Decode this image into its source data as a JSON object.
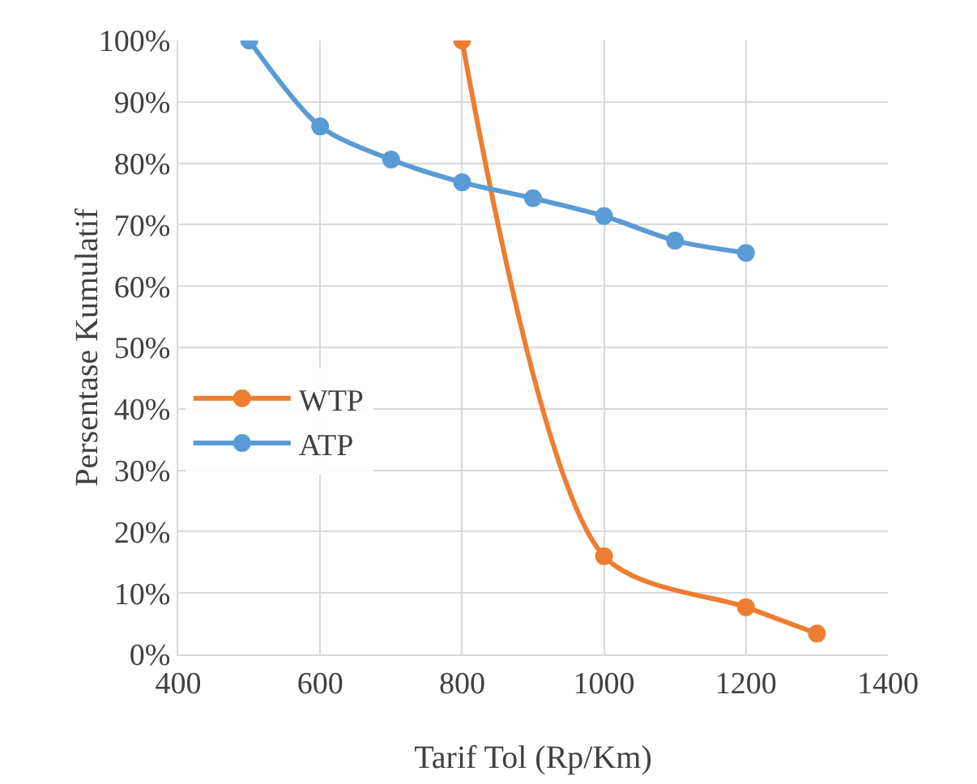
{
  "chart_data": {
    "type": "line",
    "xlabel": "Tarif Tol (Rp/Km)",
    "ylabel": "Persentase Kumulatif",
    "xlim": [
      400,
      1400
    ],
    "xticks": [
      400,
      600,
      800,
      1000,
      1200,
      1400
    ],
    "ylim": [
      0,
      100
    ],
    "yticks": [
      {
        "value": 0,
        "label": "0%"
      },
      {
        "value": 10,
        "label": "10%"
      },
      {
        "value": 20,
        "label": "20%"
      },
      {
        "value": 30,
        "label": "30%"
      },
      {
        "value": 40,
        "label": "40%"
      },
      {
        "value": 50,
        "label": "50%"
      },
      {
        "value": 60,
        "label": "60%"
      },
      {
        "value": 70,
        "label": "70%"
      },
      {
        "value": 80,
        "label": "80%"
      },
      {
        "value": 90,
        "label": "90%"
      },
      {
        "value": 100,
        "label": "100%"
      }
    ],
    "grid": true,
    "legend": "left",
    "marker": "circle",
    "line_style": "solid",
    "series": [
      {
        "name": "WTP",
        "color": "#ed7d31",
        "x": [
          800,
          1000,
          1200,
          1300
        ],
        "values": [
          100,
          16,
          7.7,
          3.4
        ]
      },
      {
        "name": "ATP",
        "color": "#5b9bd5",
        "x": [
          500,
          600,
          700,
          800,
          900,
          1000,
          1100,
          1200
        ],
        "values": [
          100,
          86,
          80.6,
          76.9,
          74.3,
          71.4,
          67.4,
          65.4
        ]
      }
    ]
  }
}
